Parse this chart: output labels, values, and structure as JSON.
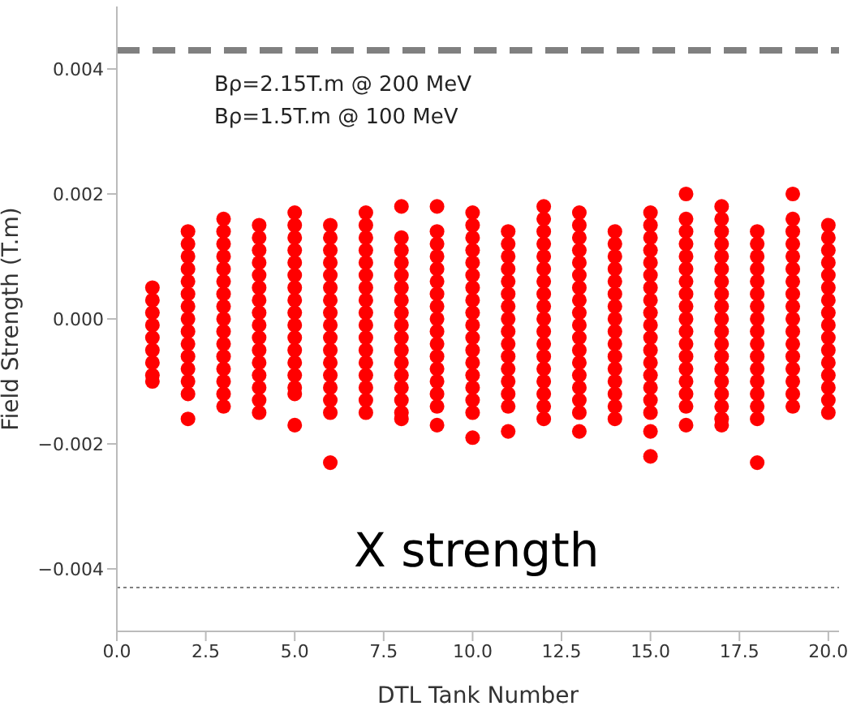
{
  "chart_data": {
    "type": "scatter",
    "xlabel": "DTL Tank Number",
    "ylabel": "Field Strength (T.m)",
    "annotations": [
      "Bρ=2.15T.m @ 200 MeV",
      "Bρ=1.5T.m @ 100 MeV",
      "X strength"
    ],
    "xlim": [
      0,
      20.3
    ],
    "ylim": [
      -0.005,
      0.005
    ],
    "xticks": [
      {
        "value": 0,
        "label": "0.0"
      },
      2.5,
      {
        "value": 5,
        "label": "5.0"
      },
      7.5,
      {
        "value": 10,
        "label": "10.0"
      },
      12.5,
      {
        "value": 15,
        "label": "15.0"
      },
      17.5,
      {
        "value": 20,
        "label": "20.0"
      }
    ],
    "yticks": [
      {
        "value": -0.004,
        "label": "−0.004"
      },
      {
        "value": -0.002,
        "label": "−0.002"
      },
      {
        "value": 0,
        "label": "0.000"
      },
      0.002,
      0.004
    ],
    "grid": false,
    "marker": "circle",
    "ref_lines": [
      {
        "axis": "y",
        "value": 0.0043,
        "color": "#808080",
        "line_style": "dashed"
      },
      {
        "axis": "y",
        "value": -0.0043,
        "color": "#808080",
        "line_style": "dotted"
      }
    ],
    "series": [
      {
        "color": "#ff0000",
        "x": [
          1,
          1,
          1,
          1,
          1,
          1,
          1,
          1,
          1
        ],
        "values": [
          0.0005,
          0.0003,
          0.0001,
          -0.0001,
          -0.0003,
          -0.0005,
          -0.0007,
          -0.0009,
          -0.001
        ]
      },
      {
        "color": "#ff0000",
        "x": [
          2,
          2,
          2,
          2,
          2,
          2,
          2,
          2,
          2,
          2,
          2,
          2,
          2,
          2,
          2
        ],
        "values": [
          0.0014,
          0.0012,
          0.001,
          0.0008,
          0.0006,
          0.0004,
          0.0002,
          0,
          -0.0002,
          -0.0004,
          -0.0006,
          -0.0008,
          -0.001,
          -0.0012,
          -0.0016
        ]
      },
      {
        "color": "#ff0000",
        "x": [
          3,
          3,
          3,
          3,
          3,
          3,
          3,
          3,
          3,
          3,
          3,
          3,
          3,
          3,
          3,
          3
        ],
        "values": [
          0.0016,
          0.0014,
          0.0012,
          0.001,
          0.0008,
          0.0006,
          0.0004,
          0.0002,
          0,
          -0.0002,
          -0.0004,
          -0.0006,
          -0.0008,
          -0.001,
          -0.0012,
          -0.0014
        ]
      },
      {
        "color": "#ff0000",
        "x": [
          4,
          4,
          4,
          4,
          4,
          4,
          4,
          4,
          4,
          4,
          4,
          4,
          4,
          4,
          4,
          4
        ],
        "values": [
          0.0015,
          0.0013,
          0.0011,
          0.0009,
          0.0007,
          0.0005,
          0.0003,
          0.0001,
          -0.0001,
          -0.0003,
          -0.0005,
          -0.0007,
          -0.0009,
          -0.0011,
          -0.0013,
          -0.0015
        ]
      },
      {
        "color": "#ff0000",
        "x": [
          5,
          5,
          5,
          5,
          5,
          5,
          5,
          5,
          5,
          5,
          5,
          5,
          5,
          5,
          5,
          5,
          5
        ],
        "values": [
          0.0017,
          0.0015,
          0.0013,
          0.0011,
          0.0009,
          0.0007,
          0.0005,
          0.0003,
          0.0001,
          -0.0001,
          -0.0003,
          -0.0005,
          -0.0007,
          -0.0009,
          -0.0011,
          -0.0012,
          -0.0017
        ]
      },
      {
        "color": "#ff0000",
        "x": [
          6,
          6,
          6,
          6,
          6,
          6,
          6,
          6,
          6,
          6,
          6,
          6,
          6,
          6,
          6,
          6,
          6
        ],
        "values": [
          0.0015,
          0.0013,
          0.0011,
          0.0009,
          0.0007,
          0.0005,
          0.0003,
          0.0001,
          -0.0001,
          -0.0003,
          -0.0005,
          -0.0007,
          -0.0009,
          -0.0011,
          -0.0013,
          -0.0015,
          -0.0023
        ]
      },
      {
        "color": "#ff0000",
        "x": [
          7,
          7,
          7,
          7,
          7,
          7,
          7,
          7,
          7,
          7,
          7,
          7,
          7,
          7,
          7,
          7,
          7
        ],
        "values": [
          0.0017,
          0.0015,
          0.0013,
          0.0011,
          0.0009,
          0.0007,
          0.0005,
          0.0003,
          0.0001,
          -0.0001,
          -0.0003,
          -0.0005,
          -0.0007,
          -0.0009,
          -0.0011,
          -0.0013,
          -0.0015
        ]
      },
      {
        "color": "#ff0000",
        "x": [
          8,
          8,
          8,
          8,
          8,
          8,
          8,
          8,
          8,
          8,
          8,
          8,
          8,
          8,
          8,
          8,
          8
        ],
        "values": [
          0.0018,
          0.0013,
          0.0011,
          0.0009,
          0.0007,
          0.0005,
          0.0003,
          0.0001,
          -0.0001,
          -0.0003,
          -0.0005,
          -0.0007,
          -0.0009,
          -0.0011,
          -0.0013,
          -0.0015,
          -0.0016
        ]
      },
      {
        "color": "#ff0000",
        "x": [
          9,
          9,
          9,
          9,
          9,
          9,
          9,
          9,
          9,
          9,
          9,
          9,
          9,
          9,
          9,
          9,
          9
        ],
        "values": [
          0.0018,
          0.0014,
          0.0012,
          0.001,
          0.0008,
          0.0006,
          0.0004,
          0.0002,
          0,
          -0.0002,
          -0.0004,
          -0.0006,
          -0.0008,
          -0.001,
          -0.0012,
          -0.0014,
          -0.0017
        ]
      },
      {
        "color": "#ff0000",
        "x": [
          10,
          10,
          10,
          10,
          10,
          10,
          10,
          10,
          10,
          10,
          10,
          10,
          10,
          10,
          10,
          10,
          10,
          10
        ],
        "values": [
          0.0017,
          0.0015,
          0.0013,
          0.0011,
          0.0009,
          0.0007,
          0.0005,
          0.0003,
          0.0001,
          -0.0001,
          -0.0003,
          -0.0005,
          -0.0007,
          -0.0009,
          -0.0011,
          -0.0013,
          -0.0015,
          -0.0019
        ]
      },
      {
        "color": "#ff0000",
        "x": [
          11,
          11,
          11,
          11,
          11,
          11,
          11,
          11,
          11,
          11,
          11,
          11,
          11,
          11,
          11,
          11
        ],
        "values": [
          0.0014,
          0.0012,
          0.001,
          0.0008,
          0.0006,
          0.0004,
          0.0002,
          0,
          -0.0002,
          -0.0004,
          -0.0006,
          -0.0008,
          -0.001,
          -0.0012,
          -0.0014,
          -0.0018
        ]
      },
      {
        "color": "#ff0000",
        "x": [
          12,
          12,
          12,
          12,
          12,
          12,
          12,
          12,
          12,
          12,
          12,
          12,
          12,
          12,
          12,
          12,
          12,
          12
        ],
        "values": [
          0.0018,
          0.0016,
          0.0014,
          0.0012,
          0.001,
          0.0008,
          0.0006,
          0.0004,
          0.0002,
          0,
          -0.0002,
          -0.0004,
          -0.0006,
          -0.0008,
          -0.001,
          -0.0012,
          -0.0014,
          -0.0016
        ]
      },
      {
        "color": "#ff0000",
        "x": [
          13,
          13,
          13,
          13,
          13,
          13,
          13,
          13,
          13,
          13,
          13,
          13,
          13,
          13,
          13,
          13,
          13,
          13
        ],
        "values": [
          0.0017,
          0.0015,
          0.0013,
          0.0011,
          0.0009,
          0.0007,
          0.0005,
          0.0003,
          0.0001,
          -0.0001,
          -0.0003,
          -0.0005,
          -0.0007,
          -0.0009,
          -0.0011,
          -0.0013,
          -0.0015,
          -0.0018
        ]
      },
      {
        "color": "#ff0000",
        "x": [
          14,
          14,
          14,
          14,
          14,
          14,
          14,
          14,
          14,
          14,
          14,
          14,
          14,
          14,
          14,
          14
        ],
        "values": [
          0.0014,
          0.0012,
          0.001,
          0.0008,
          0.0006,
          0.0004,
          0.0002,
          0,
          -0.0002,
          -0.0004,
          -0.0006,
          -0.0008,
          -0.001,
          -0.0012,
          -0.0014,
          -0.0016
        ]
      },
      {
        "color": "#ff0000",
        "x": [
          15,
          15,
          15,
          15,
          15,
          15,
          15,
          15,
          15,
          15,
          15,
          15,
          15,
          15,
          15,
          15,
          15,
          15,
          15
        ],
        "values": [
          0.0017,
          0.0015,
          0.0013,
          0.0011,
          0.0009,
          0.0007,
          0.0005,
          0.0003,
          0.0001,
          -0.0001,
          -0.0003,
          -0.0005,
          -0.0007,
          -0.0009,
          -0.0011,
          -0.0013,
          -0.0015,
          -0.0018,
          -0.0022
        ]
      },
      {
        "color": "#ff0000",
        "x": [
          16,
          16,
          16,
          16,
          16,
          16,
          16,
          16,
          16,
          16,
          16,
          16,
          16,
          16,
          16,
          16,
          16,
          16
        ],
        "values": [
          0.002,
          0.0016,
          0.0014,
          0.0012,
          0.001,
          0.0008,
          0.0006,
          0.0004,
          0.0002,
          0,
          -0.0002,
          -0.0004,
          -0.0006,
          -0.0008,
          -0.001,
          -0.0012,
          -0.0014,
          -0.0017
        ]
      },
      {
        "color": "#ff0000",
        "x": [
          17,
          17,
          17,
          17,
          17,
          17,
          17,
          17,
          17,
          17,
          17,
          17,
          17,
          17,
          17,
          17,
          17,
          17,
          17
        ],
        "values": [
          0.0018,
          0.0016,
          0.0014,
          0.0012,
          0.001,
          0.0008,
          0.0006,
          0.0004,
          0.0002,
          0,
          -0.0002,
          -0.0004,
          -0.0006,
          -0.0008,
          -0.001,
          -0.0012,
          -0.0014,
          -0.0016,
          -0.0017
        ]
      },
      {
        "color": "#ff0000",
        "x": [
          18,
          18,
          18,
          18,
          18,
          18,
          18,
          18,
          18,
          18,
          18,
          18,
          18,
          18,
          18,
          18,
          18
        ],
        "values": [
          0.0014,
          0.0012,
          0.001,
          0.0008,
          0.0006,
          0.0004,
          0.0002,
          0,
          -0.0002,
          -0.0004,
          -0.0006,
          -0.0008,
          -0.001,
          -0.0012,
          -0.0014,
          -0.0016,
          -0.0023
        ]
      },
      {
        "color": "#ff0000",
        "x": [
          19,
          19,
          19,
          19,
          19,
          19,
          19,
          19,
          19,
          19,
          19,
          19,
          19,
          19,
          19,
          19,
          19
        ],
        "values": [
          0.002,
          0.0016,
          0.0014,
          0.0012,
          0.001,
          0.0008,
          0.0006,
          0.0004,
          0.0002,
          0,
          -0.0002,
          -0.0004,
          -0.0006,
          -0.0008,
          -0.001,
          -0.0012,
          -0.0014
        ]
      },
      {
        "color": "#ff0000",
        "x": [
          20,
          20,
          20,
          20,
          20,
          20,
          20,
          20,
          20,
          20,
          20,
          20,
          20,
          20,
          20,
          20
        ],
        "values": [
          0.0015,
          0.0013,
          0.0011,
          0.0009,
          0.0007,
          0.0005,
          0.0003,
          0.0001,
          -0.0001,
          -0.0003,
          -0.0005,
          -0.0007,
          -0.0009,
          -0.0011,
          -0.0013,
          -0.0015
        ]
      }
    ]
  }
}
